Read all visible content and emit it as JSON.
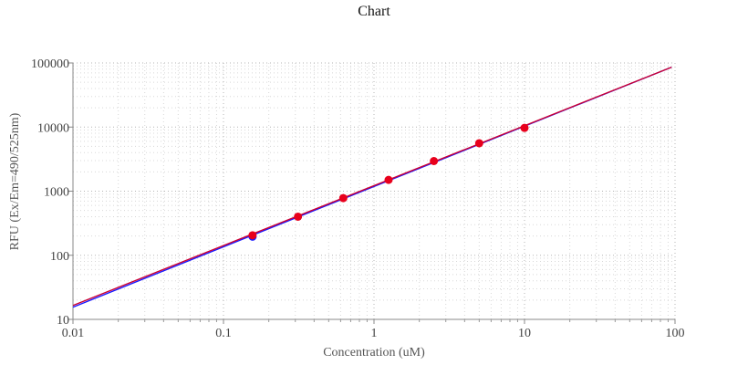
{
  "chart_data": {
    "type": "scatter",
    "title": "Chart",
    "xlabel": "Concentration (uM)",
    "ylabel": "RFU (Ex/Em=490/525nm)",
    "x_scale": "log",
    "y_scale": "log",
    "xlim": [
      0.01,
      100
    ],
    "ylim": [
      10,
      100000
    ],
    "x_ticks": [
      "0.01",
      "0.1",
      "1",
      "10",
      "100"
    ],
    "y_ticks": [
      "10",
      "100",
      "1000",
      "10000",
      "100000"
    ],
    "grid": "dotted",
    "legend": "none",
    "series": [
      {
        "color": "#e8001c",
        "marker": "circle",
        "points": [
          {
            "x": 0.156,
            "y": 205
          },
          {
            "x": 0.3125,
            "y": 400
          },
          {
            "x": 0.625,
            "y": 780
          },
          {
            "x": 1.25,
            "y": 1500
          },
          {
            "x": 2.5,
            "y": 2950
          },
          {
            "x": 5,
            "y": 5600
          },
          {
            "x": 10,
            "y": 9700
          }
        ]
      },
      {
        "color": "#1a1aff",
        "marker": "circle",
        "points": [
          {
            "x": 0.156,
            "y": 195
          }
        ]
      }
    ],
    "fit_lines": [
      {
        "color": "#1a1aff",
        "from": {
          "x": 0.01,
          "y": 15.5
        },
        "to": {
          "x": 95,
          "y": 86000
        }
      },
      {
        "color": "#cc0033",
        "from": {
          "x": 0.01,
          "y": 16.5
        },
        "to": {
          "x": 95,
          "y": 86000
        }
      }
    ]
  }
}
